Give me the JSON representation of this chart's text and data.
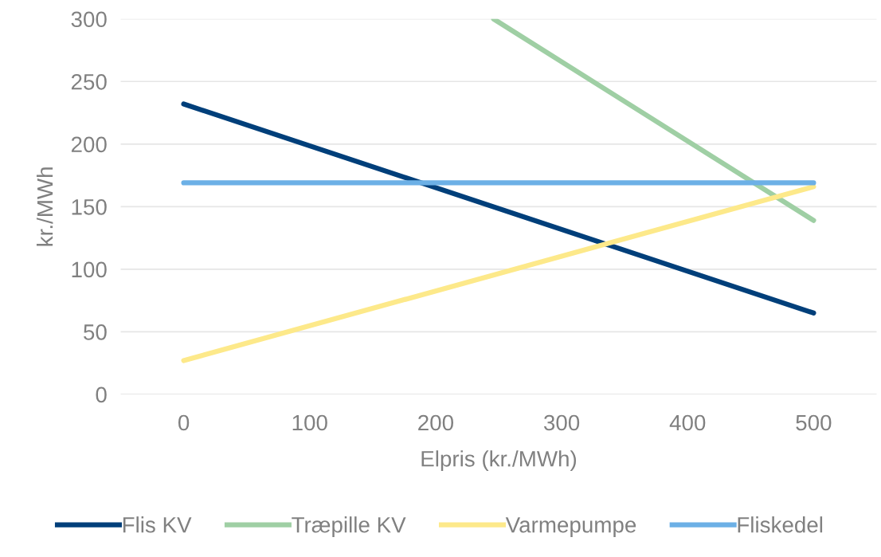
{
  "chart_data": {
    "type": "line",
    "xlabel": "Elpris (kr./MWh)",
    "ylabel": "kr./MWh",
    "series": [
      {
        "name": "Flis KV",
        "color": "#003f7a",
        "x": [
          0,
          500
        ],
        "values": [
          232,
          65
        ]
      },
      {
        "name": "Træpille KV",
        "color": "#9fcfa4",
        "x": [
          246,
          500
        ],
        "values": [
          300,
          139
        ]
      },
      {
        "name": "Varmepumpe",
        "color": "#fde98a",
        "x": [
          0,
          500
        ],
        "values": [
          27,
          166
        ]
      },
      {
        "name": "Fliskedel",
        "color": "#6cb0e6",
        "x": [
          0,
          500
        ],
        "values": [
          169,
          169
        ]
      }
    ],
    "xlim": [
      -50,
      550
    ],
    "xticks": [
      0,
      100,
      200,
      300,
      400,
      500
    ],
    "ylim": [
      0,
      300
    ],
    "yticks": [
      0,
      50,
      100,
      150,
      200,
      250,
      300
    ],
    "grid": "y",
    "legend": "bottom",
    "marker": "none",
    "line_style": "solid"
  }
}
